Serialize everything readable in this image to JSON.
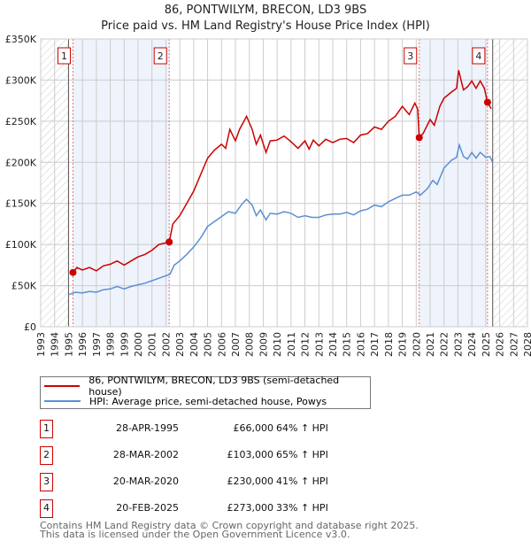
{
  "title": "86, PONTWILYM, BRECON, LD3 9BS",
  "subtitle": "Price paid vs. HM Land Registry's House Price Index (HPI)",
  "chart_data": {
    "type": "line",
    "title": "86, PONTWILYM, BRECON, LD3 9BS",
    "subtitle": "Price paid vs. HM Land Registry's House Price Index (HPI)",
    "xlim": [
      1993,
      2028
    ],
    "ylim": [
      0,
      350000
    ],
    "x_ticks": [
      "1993",
      "1994",
      "1995",
      "1996",
      "1997",
      "1998",
      "1999",
      "2000",
      "2001",
      "2002",
      "2003",
      "2004",
      "2005",
      "2006",
      "2007",
      "2008",
      "2009",
      "2010",
      "2011",
      "2012",
      "2013",
      "2014",
      "2015",
      "2016",
      "2017",
      "2018",
      "2019",
      "2020",
      "2021",
      "2022",
      "2023",
      "2024",
      "2025",
      "2026",
      "2027",
      "2028"
    ],
    "y_ticks": [
      {
        "v": 0,
        "label": "£0"
      },
      {
        "v": 50000,
        "label": "£50K"
      },
      {
        "v": 100000,
        "label": "£100K"
      },
      {
        "v": 150000,
        "label": "£150K"
      },
      {
        "v": 200000,
        "label": "£200K"
      },
      {
        "v": 250000,
        "label": "£250K"
      },
      {
        "v": 300000,
        "label": "£300K"
      },
      {
        "v": 350000,
        "label": "£350K"
      }
    ],
    "grid": true,
    "data_range": [
      1995.0,
      2025.5
    ],
    "series": [
      {
        "name": "86, PONTWILYM, BRECON, LD3 9BS (semi-detached house)",
        "color": "#cc0000",
        "points": [
          [
            1995.32,
            66000
          ],
          [
            1995.6,
            72000
          ],
          [
            1996,
            69000
          ],
          [
            1996.5,
            72000
          ],
          [
            1997,
            68000
          ],
          [
            1997.5,
            74000
          ],
          [
            1998,
            76000
          ],
          [
            1998.5,
            80000
          ],
          [
            1999,
            75000
          ],
          [
            1999.5,
            80000
          ],
          [
            2000,
            85000
          ],
          [
            2000.5,
            88000
          ],
          [
            2001,
            93000
          ],
          [
            2001.5,
            100000
          ],
          [
            2002.24,
            103000
          ],
          [
            2002.5,
            125000
          ],
          [
            2003,
            135000
          ],
          [
            2003.5,
            150000
          ],
          [
            2004,
            165000
          ],
          [
            2004.5,
            185000
          ],
          [
            2005,
            205000
          ],
          [
            2005.5,
            215000
          ],
          [
            2006,
            222000
          ],
          [
            2006.3,
            217000
          ],
          [
            2006.6,
            240000
          ],
          [
            2007,
            226000
          ],
          [
            2007.3,
            240000
          ],
          [
            2007.8,
            256000
          ],
          [
            2008.2,
            240000
          ],
          [
            2008.5,
            222000
          ],
          [
            2008.8,
            233000
          ],
          [
            2009.2,
            212000
          ],
          [
            2009.5,
            226000
          ],
          [
            2010,
            227000
          ],
          [
            2010.5,
            232000
          ],
          [
            2011,
            225000
          ],
          [
            2011.5,
            217000
          ],
          [
            2012,
            226000
          ],
          [
            2012.3,
            216000
          ],
          [
            2012.6,
            227000
          ],
          [
            2013,
            220000
          ],
          [
            2013.5,
            228000
          ],
          [
            2014,
            224000
          ],
          [
            2014.5,
            228000
          ],
          [
            2015,
            229000
          ],
          [
            2015.5,
            224000
          ],
          [
            2016,
            233000
          ],
          [
            2016.5,
            235000
          ],
          [
            2017,
            243000
          ],
          [
            2017.5,
            240000
          ],
          [
            2018,
            250000
          ],
          [
            2018.5,
            256000
          ],
          [
            2019,
            268000
          ],
          [
            2019.5,
            258000
          ],
          [
            2019.9,
            272000
          ],
          [
            2020.1,
            265000
          ],
          [
            2020.22,
            230000
          ],
          [
            2020.5,
            235000
          ],
          [
            2021,
            252000
          ],
          [
            2021.3,
            245000
          ],
          [
            2021.7,
            268000
          ],
          [
            2022,
            278000
          ],
          [
            2022.5,
            285000
          ],
          [
            2022.9,
            290000
          ],
          [
            2023.05,
            312000
          ],
          [
            2023.4,
            288000
          ],
          [
            2023.7,
            292000
          ],
          [
            2024,
            299000
          ],
          [
            2024.3,
            290000
          ],
          [
            2024.6,
            299000
          ],
          [
            2024.9,
            290000
          ],
          [
            2025.13,
            273000
          ],
          [
            2025.4,
            265000
          ]
        ]
      },
      {
        "name": "HPI: Average price, semi-detached house, Powys",
        "color": "#5b8fd4",
        "points": [
          [
            1995,
            39000
          ],
          [
            1995.5,
            42000
          ],
          [
            1996,
            41000
          ],
          [
            1996.5,
            43000
          ],
          [
            1997,
            42000
          ],
          [
            1997.5,
            45000
          ],
          [
            1998,
            46000
          ],
          [
            1998.5,
            49000
          ],
          [
            1999,
            46000
          ],
          [
            1999.5,
            49000
          ],
          [
            2000,
            51000
          ],
          [
            2000.5,
            53000
          ],
          [
            2001,
            56000
          ],
          [
            2001.5,
            59000
          ],
          [
            2002,
            62000
          ],
          [
            2002.3,
            64000
          ],
          [
            2002.6,
            75000
          ],
          [
            2003,
            80000
          ],
          [
            2003.5,
            88000
          ],
          [
            2004,
            97000
          ],
          [
            2004.5,
            108000
          ],
          [
            2005,
            122000
          ],
          [
            2005.5,
            128000
          ],
          [
            2006,
            134000
          ],
          [
            2006.5,
            140000
          ],
          [
            2007,
            138000
          ],
          [
            2007.5,
            150000
          ],
          [
            2007.8,
            155000
          ],
          [
            2008.2,
            148000
          ],
          [
            2008.5,
            135000
          ],
          [
            2008.8,
            142000
          ],
          [
            2009.2,
            130000
          ],
          [
            2009.5,
            138000
          ],
          [
            2010,
            137000
          ],
          [
            2010.5,
            140000
          ],
          [
            2011,
            138000
          ],
          [
            2011.5,
            133000
          ],
          [
            2012,
            135000
          ],
          [
            2012.5,
            133000
          ],
          [
            2013,
            133000
          ],
          [
            2013.5,
            136000
          ],
          [
            2014,
            137000
          ],
          [
            2014.5,
            137000
          ],
          [
            2015,
            139000
          ],
          [
            2015.5,
            136000
          ],
          [
            2016,
            141000
          ],
          [
            2016.5,
            143000
          ],
          [
            2017,
            148000
          ],
          [
            2017.5,
            146000
          ],
          [
            2018,
            152000
          ],
          [
            2018.5,
            156000
          ],
          [
            2019,
            160000
          ],
          [
            2019.5,
            160000
          ],
          [
            2020,
            164000
          ],
          [
            2020.3,
            160000
          ],
          [
            2020.8,
            168000
          ],
          [
            2021.2,
            178000
          ],
          [
            2021.5,
            173000
          ],
          [
            2021.8,
            185000
          ],
          [
            2022,
            193000
          ],
          [
            2022.5,
            202000
          ],
          [
            2022.9,
            206000
          ],
          [
            2023.1,
            221000
          ],
          [
            2023.4,
            207000
          ],
          [
            2023.7,
            204000
          ],
          [
            2024,
            212000
          ],
          [
            2024.3,
            205000
          ],
          [
            2024.6,
            212000
          ],
          [
            2025,
            206000
          ],
          [
            2025.3,
            207000
          ],
          [
            2025.5,
            200000
          ]
        ]
      }
    ],
    "sales": [
      {
        "n": "1",
        "x": 1995.32,
        "y": 66000
      },
      {
        "n": "2",
        "x": 2002.24,
        "y": 103000
      },
      {
        "n": "3",
        "x": 2020.22,
        "y": 230000
      },
      {
        "n": "4",
        "x": 2025.13,
        "y": 273000
      }
    ]
  },
  "legend": {
    "property": "86, PONTWILYM, BRECON, LD3 9BS (semi-detached house)",
    "hpi": "HPI: Average price, semi-detached house, Powys"
  },
  "table": [
    {
      "n": "1",
      "date": "28-APR-1995",
      "price": "£66,000",
      "hpi": "64% ↑ HPI"
    },
    {
      "n": "2",
      "date": "28-MAR-2002",
      "price": "£103,000",
      "hpi": "65% ↑ HPI"
    },
    {
      "n": "3",
      "date": "20-MAR-2020",
      "price": "£230,000",
      "hpi": "41% ↑ HPI"
    },
    {
      "n": "4",
      "date": "20-FEB-2025",
      "price": "£273,000",
      "hpi": "33% ↑ HPI"
    }
  ],
  "footer": {
    "line1": "Contains HM Land Registry data © Crown copyright and database right 2025.",
    "line2": "This data is licensed under the Open Government Licence v3.0."
  }
}
